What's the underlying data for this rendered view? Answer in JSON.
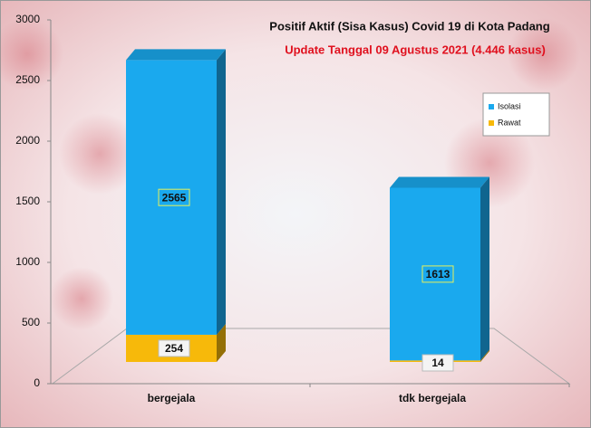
{
  "chart_data": {
    "type": "bar3d_stacked",
    "title": "Positif Aktif  (Sisa Kasus) Covid 19 di Kota Padang",
    "subtitle": "Update Tanggal  09 Agustus  2021 (4.446 kasus)",
    "categories": [
      "bergejala",
      "tdk bergejala"
    ],
    "series": [
      {
        "name": "Isolasi",
        "color": "#1aa9ee",
        "values": [
          2565,
          1613
        ]
      },
      {
        "name": "Rawat",
        "color": "#f7b90a",
        "values": [
          254,
          14
        ]
      }
    ],
    "ylim": [
      0,
      3000
    ],
    "yticks": [
      0,
      500,
      1000,
      1500,
      2000,
      2500,
      3000
    ],
    "legend": "right"
  }
}
